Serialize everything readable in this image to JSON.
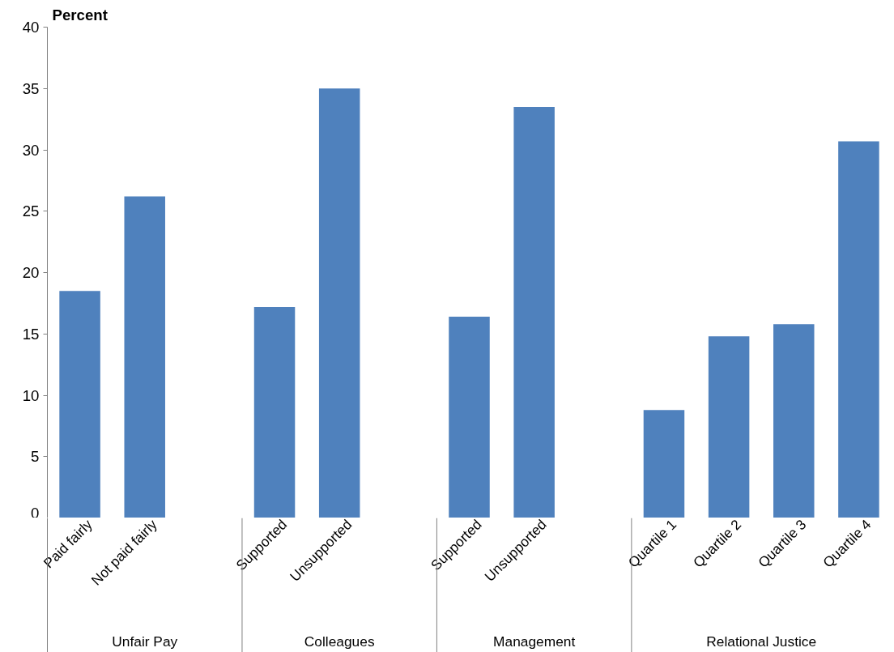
{
  "chart_data": {
    "type": "bar",
    "ylabel": "Percent",
    "categories": [
      "Paid fairly",
      "Not paid fairly",
      null,
      "Supported",
      "Unsupported",
      null,
      "Supported",
      "Unsupported",
      null,
      "Quartile 1",
      "Quartile 2",
      "Quartile 3",
      "Quartile 4"
    ],
    "values": [
      18.5,
      26.2,
      null,
      17.2,
      35.0,
      null,
      16.4,
      33.5,
      null,
      8.8,
      14.8,
      15.8,
      30.7
    ],
    "color": "#4f81bd",
    "annotations": [
      "Unfair Pay",
      "Colleagues",
      "Management",
      "Relational Justice"
    ],
    "ylim": [
      0,
      40
    ],
    "yticks": [
      0,
      5,
      10,
      15,
      20,
      25,
      30,
      35,
      40
    ],
    "grid": false,
    "legend": false
  }
}
